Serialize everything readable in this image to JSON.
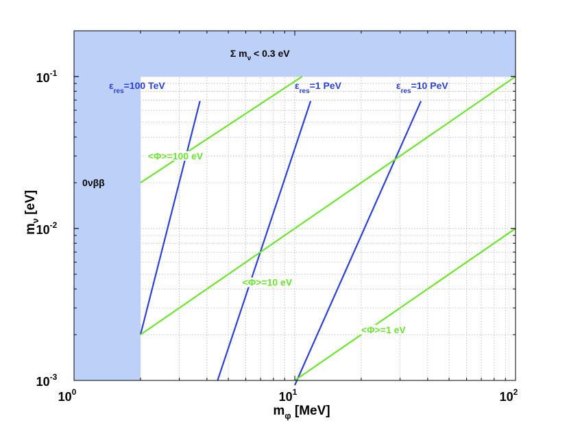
{
  "chart_data": {
    "type": "line",
    "xscale": "log",
    "yscale": "log",
    "xlim": [
      1,
      100
    ],
    "ylim": [
      0.001,
      0.2
    ],
    "grid": true,
    "xlabel": {
      "main": "m",
      "sub": "φ",
      "rest": " [MeV]"
    },
    "ylabel": {
      "main": "m",
      "sub": "ν",
      "rest": " [eV]"
    },
    "xticks": [
      {
        "value": 1,
        "base": "10",
        "exp": "0"
      },
      {
        "value": 10,
        "base": "10",
        "exp": "1"
      },
      {
        "value": 100,
        "base": "10",
        "exp": "2"
      }
    ],
    "yticks": [
      {
        "value": 0.001,
        "base": "10",
        "exp": "-3"
      },
      {
        "value": 0.01,
        "base": "10",
        "exp": "-2"
      },
      {
        "value": 0.1,
        "base": "10",
        "exp": "-1"
      }
    ],
    "excluded_regions": [
      {
        "name": "0νββ",
        "color": "#bdd0f7",
        "x_range": [
          1,
          2
        ],
        "y_range": [
          0.001,
          0.2
        ],
        "label": {
          "text": "0νββ",
          "x": 1.09,
          "y": 0.02
        }
      },
      {
        "name": "sum-mnu",
        "color": "#bdd0f7",
        "x_range": [
          1,
          100
        ],
        "y_range": [
          0.1,
          0.2
        ],
        "label": {
          "sigma": "Σ m",
          "sub": "ν",
          "rest": " < 0.3 eV",
          "x": 5.1,
          "y": 0.142
        }
      }
    ],
    "series": [
      {
        "group": "epsilon_res",
        "color": "#2a3fd6",
        "points": [
          [
            2,
            0.002
          ],
          [
            4.47,
            0.001
          ]
        ],
        "label": {
          "main": "ε",
          "sub": "res",
          "rest": "=100 TeV",
          "x": 1.44,
          "y": 0.083
        },
        "label_points": [
          [
            2,
            0.002
          ],
          [
            3.72,
            0.069
          ]
        ]
      },
      {
        "group": "epsilon_res",
        "color": "#2a3fd6",
        "points": [
          [
            2,
            0.002
          ],
          [
            4.47,
            0.001
          ]
        ],
        "label": {
          "main": "ε",
          "sub": "res",
          "rest": "=1 PeV",
          "x": 10.0,
          "y": 0.083
        },
        "label_points": [
          [
            2,
            0.002
          ],
          [
            11.8,
            0.069
          ]
        ]
      },
      {
        "group": "epsilon_res",
        "color": "#2a3fd6",
        "points": [
          [
            4.47,
            0.001
          ],
          [
            37.3,
            0.069
          ]
        ],
        "label": {
          "main": "ε",
          "sub": "res",
          "rest": "=10 PeV",
          "x": 28.8,
          "y": 0.083
        },
        "label_points": [
          [
            10,
            0.001
          ],
          [
            37.3,
            0.069
          ]
        ]
      },
      {
        "group": "Phi",
        "color": "#6ae62a",
        "points": [
          [
            2,
            0.02
          ],
          [
            10.8,
            0.1
          ]
        ],
        "label": {
          "text": "<Φ>=100 eV",
          "x": 2.16,
          "y": 0.0285
        }
      },
      {
        "group": "Phi",
        "color": "#6ae62a",
        "points": [
          [
            2,
            0.002
          ],
          [
            100,
            0.1
          ]
        ],
        "label": {
          "text": "<Φ>=10 eV",
          "x": 5.79,
          "y": 0.0042
        }
      },
      {
        "group": "Phi",
        "color": "#6ae62a",
        "points": [
          [
            10,
            0.001
          ],
          [
            100,
            0.01
          ]
        ],
        "label": {
          "text": "<Φ>=1 eV",
          "x": 20.0,
          "y": 0.00205
        }
      }
    ]
  }
}
